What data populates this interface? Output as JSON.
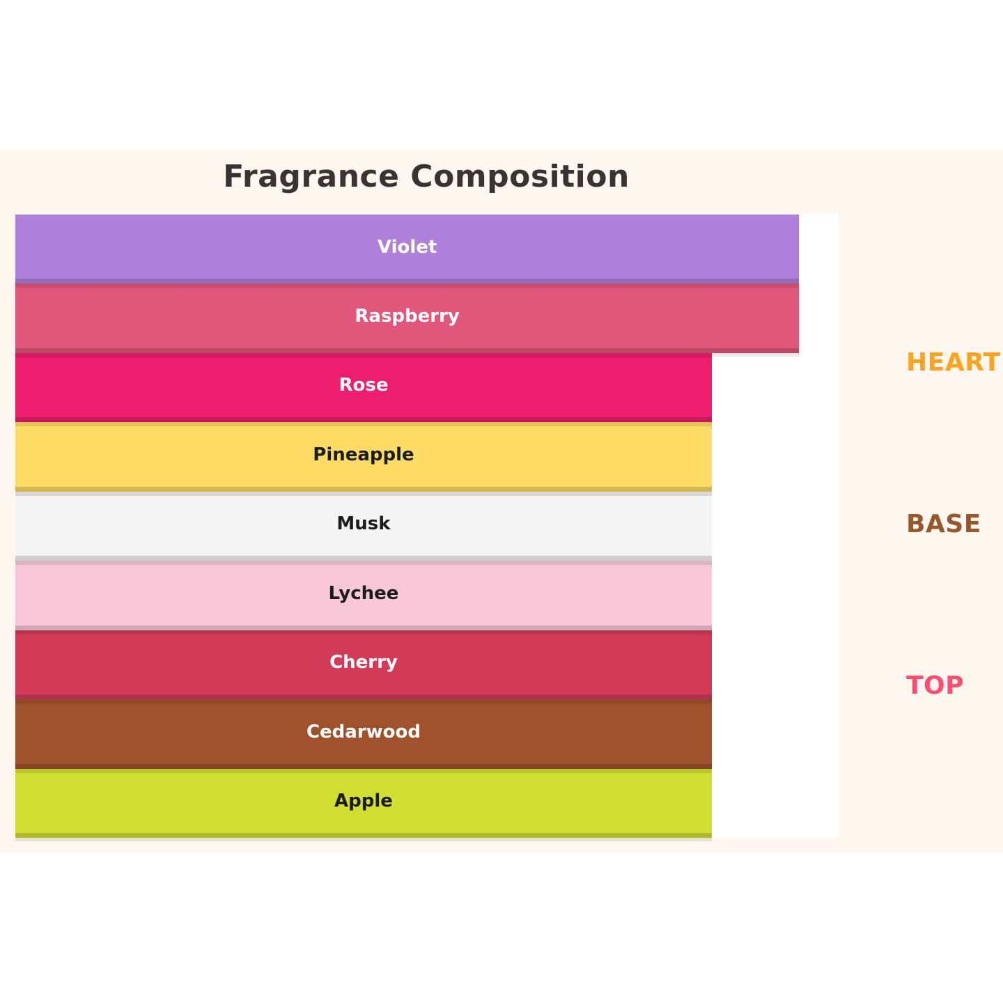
{
  "page": {
    "background": "#FFFFFF",
    "canvas_background": "#FDF7F0",
    "plot_background": "#FFFFFF"
  },
  "chart_data": {
    "type": "bar",
    "orientation": "horizontal",
    "title": "Fragrance Composition",
    "title_color": "#3C3232",
    "xlabel": "",
    "ylabel": "",
    "axes_hidden": true,
    "gridlines": false,
    "legend_position": "none",
    "value_note": "no numeric axis shown; values are bar lengths as percent of plot width",
    "categories": [
      "Violet",
      "Raspberry",
      "Rose",
      "Pineapple",
      "Musk",
      "Lychee",
      "Cherry",
      "Cedarwood",
      "Apple"
    ],
    "values": [
      95.2,
      95.2,
      84.6,
      84.6,
      84.6,
      84.6,
      84.6,
      84.6,
      84.6
    ],
    "bar_colors": [
      "#AF80DA",
      "#E1577B",
      "#EC1E6D",
      "#FDDB64",
      "#F5F4F4",
      "#F8C8D9",
      "#D23A58",
      "#A0522D",
      "#D1DF32"
    ],
    "bar_label_colors": [
      "#FFFFFF",
      "#FFFFFF",
      "#FFFFFF",
      "#1C1C1C",
      "#1C1C1C",
      "#1C1C1C",
      "#FFFFFF",
      "#FFFFFF",
      "#1C1C1C"
    ],
    "annotations": [
      {
        "text": "HEART",
        "color": "#FFA21F"
      },
      {
        "text": "BASE",
        "color": "#96582A"
      },
      {
        "text": "TOP",
        "color": "#FF4D72"
      }
    ]
  }
}
